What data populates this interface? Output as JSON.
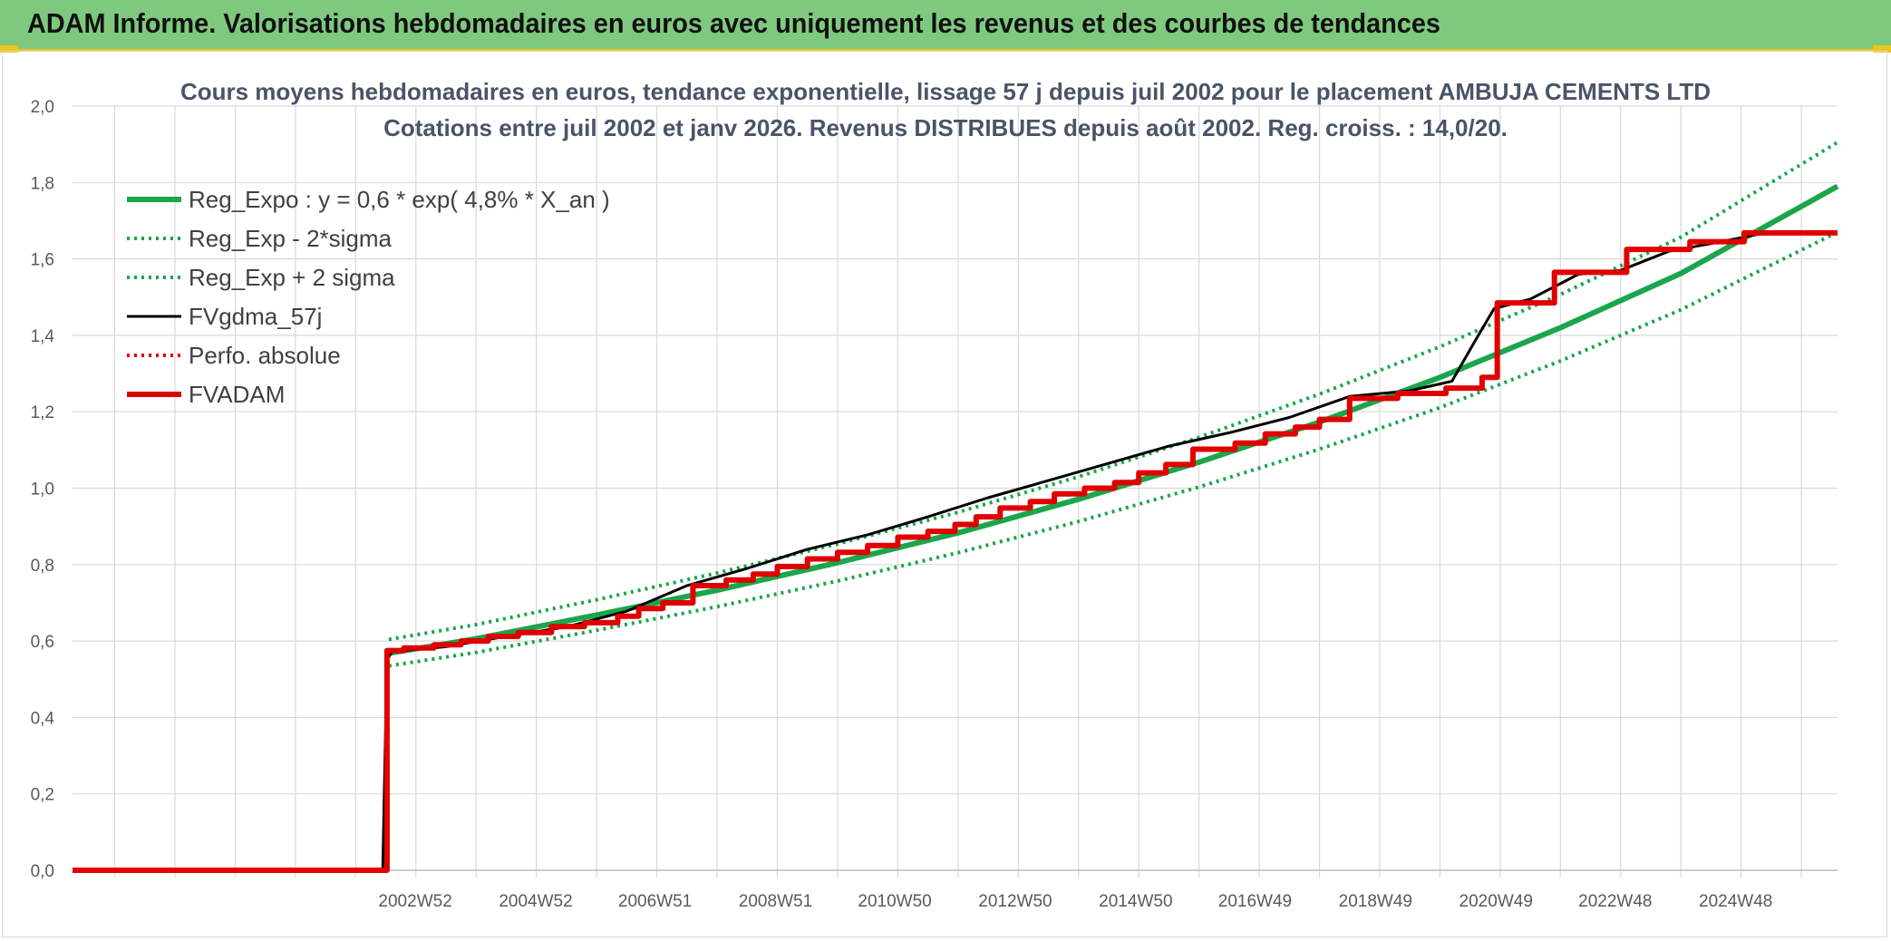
{
  "banner": {
    "title": "ADAM Informe. Valorisations hebdomadaires en euros avec uniquement les revenus et des courbes de tendances"
  },
  "colors": {
    "banner_bg": "#7fc97f",
    "accent_yellow": "#f0c419",
    "trend_green": "#1aa64a",
    "adam_red": "#e00000",
    "fv_black": "#000000"
  },
  "chart_data": {
    "type": "line",
    "title": [
      "Cours moyens hebdomadaires en euros, tendance exponentielle, lissage 57 j depuis juil 2002 pour le placement AMBUJA CEMENTS LTD",
      "Cotations entre juil 2002 et janv 2026. Revenus DISTRIBUES depuis août 2002. Reg. croiss. : 14,0/20."
    ],
    "xlabel": "",
    "ylabel": "",
    "ylim": [
      0,
      2.0
    ],
    "xlim": [
      1997.3,
      2026.6
    ],
    "y_ticks": [
      "0,0",
      "0,2",
      "0,4",
      "0,6",
      "0,8",
      "1,0",
      "1,2",
      "1,4",
      "1,6",
      "1,8",
      "2,0"
    ],
    "x_tick_labels": [
      {
        "label": "2002W52",
        "x": 2002.99
      },
      {
        "label": "2004W52",
        "x": 2004.99
      },
      {
        "label": "2006W51",
        "x": 2006.97
      },
      {
        "label": "2008W51",
        "x": 2008.97
      },
      {
        "label": "2010W50",
        "x": 2010.95
      },
      {
        "label": "2012W50",
        "x": 2012.95
      },
      {
        "label": "2014W50",
        "x": 2014.95
      },
      {
        "label": "2016W49",
        "x": 2016.93
      },
      {
        "label": "2018W49",
        "x": 2018.93
      },
      {
        "label": "2020W49",
        "x": 2020.93
      },
      {
        "label": "2022W48",
        "x": 2022.91
      },
      {
        "label": "2024W48",
        "x": 2024.91
      }
    ],
    "grid": true,
    "legend_position": "top-left",
    "series": [
      {
        "name": "Reg_Expo : y = 0,6 * exp( 4,8% *  X_an )",
        "style": "solid-thick",
        "color": "#1aa64a",
        "points": [
          [
            2002.55,
            0.568
          ],
          [
            2004,
            0.606
          ],
          [
            2006,
            0.668
          ],
          [
            2008,
            0.733
          ],
          [
            2010,
            0.805
          ],
          [
            2012,
            0.883
          ],
          [
            2014,
            0.971
          ],
          [
            2016,
            1.068
          ],
          [
            2018,
            1.173
          ],
          [
            2020,
            1.29
          ],
          [
            2022,
            1.42
          ],
          [
            2024,
            1.562
          ],
          [
            2026.6,
            1.79
          ]
        ]
      },
      {
        "name": "Reg_Exp - 2*sigma",
        "style": "dotted",
        "color": "#1aa64a",
        "points": [
          [
            2002.55,
            0.535
          ],
          [
            2004,
            0.57
          ],
          [
            2006,
            0.628
          ],
          [
            2008,
            0.69
          ],
          [
            2010,
            0.757
          ],
          [
            2012,
            0.831
          ],
          [
            2014,
            0.913
          ],
          [
            2016,
            1.003
          ],
          [
            2018,
            1.102
          ],
          [
            2020,
            1.211
          ],
          [
            2022,
            1.333
          ],
          [
            2024,
            1.467
          ],
          [
            2026.6,
            1.67
          ]
        ]
      },
      {
        "name": "Reg_Exp + 2 sigma",
        "style": "dotted",
        "color": "#1aa64a",
        "points": [
          [
            2002.55,
            0.604
          ],
          [
            2004,
            0.643
          ],
          [
            2006,
            0.708
          ],
          [
            2008,
            0.778
          ],
          [
            2010,
            0.854
          ],
          [
            2012,
            0.937
          ],
          [
            2014,
            1.03
          ],
          [
            2016,
            1.133
          ],
          [
            2018,
            1.246
          ],
          [
            2020,
            1.37
          ],
          [
            2022,
            1.507
          ],
          [
            2024,
            1.657
          ],
          [
            2026.6,
            1.905
          ]
        ]
      },
      {
        "name": "FVgdma_57j",
        "style": "solid",
        "color": "#000000",
        "points": [
          [
            1997.3,
            0.0
          ],
          [
            2002.45,
            0.0
          ],
          [
            2002.52,
            0.55
          ],
          [
            2002.6,
            0.572
          ],
          [
            2003.5,
            0.585
          ],
          [
            2004.5,
            0.612
          ],
          [
            2005.5,
            0.637
          ],
          [
            2006.5,
            0.678
          ],
          [
            2007.5,
            0.745
          ],
          [
            2008.5,
            0.79
          ],
          [
            2009.5,
            0.84
          ],
          [
            2010.5,
            0.878
          ],
          [
            2011.5,
            0.925
          ],
          [
            2012.5,
            0.975
          ],
          [
            2013.5,
            1.02
          ],
          [
            2014.5,
            1.065
          ],
          [
            2015.5,
            1.11
          ],
          [
            2016.5,
            1.145
          ],
          [
            2017.5,
            1.185
          ],
          [
            2018.5,
            1.24
          ],
          [
            2019.5,
            1.255
          ],
          [
            2020.2,
            1.28
          ],
          [
            2020.6,
            1.39
          ],
          [
            2020.9,
            1.47
          ],
          [
            2021.5,
            1.495
          ],
          [
            2022.3,
            1.56
          ],
          [
            2023,
            1.57
          ],
          [
            2023.8,
            1.62
          ],
          [
            2024.5,
            1.64
          ],
          [
            2025.3,
            1.665
          ],
          [
            2026.6,
            1.67
          ]
        ]
      },
      {
        "name": "Perfo. absolue",
        "style": "dotted",
        "color": "#e00000",
        "points": []
      },
      {
        "name": "FVADAM",
        "style": "solid-thick",
        "color": "#e00000",
        "steps": [
          [
            1997.3,
            0.0
          ],
          [
            2002.52,
            0.575
          ],
          [
            2002.8,
            0.582
          ],
          [
            2003.3,
            0.59
          ],
          [
            2003.75,
            0.6
          ],
          [
            2004.2,
            0.612
          ],
          [
            2004.7,
            0.622
          ],
          [
            2005.25,
            0.638
          ],
          [
            2005.8,
            0.648
          ],
          [
            2006.35,
            0.665
          ],
          [
            2006.7,
            0.685
          ],
          [
            2007.1,
            0.7
          ],
          [
            2007.6,
            0.745
          ],
          [
            2008.15,
            0.76
          ],
          [
            2008.6,
            0.775
          ],
          [
            2009.0,
            0.795
          ],
          [
            2009.5,
            0.815
          ],
          [
            2010.0,
            0.832
          ],
          [
            2010.5,
            0.85
          ],
          [
            2011.0,
            0.872
          ],
          [
            2011.5,
            0.887
          ],
          [
            2011.95,
            0.905
          ],
          [
            2012.3,
            0.925
          ],
          [
            2012.7,
            0.948
          ],
          [
            2013.2,
            0.965
          ],
          [
            2013.6,
            0.985
          ],
          [
            2014.1,
            1.0
          ],
          [
            2014.6,
            1.015
          ],
          [
            2015.0,
            1.04
          ],
          [
            2015.45,
            1.062
          ],
          [
            2015.9,
            1.102
          ],
          [
            2016.6,
            1.118
          ],
          [
            2017.1,
            1.142
          ],
          [
            2017.6,
            1.16
          ],
          [
            2018.0,
            1.18
          ],
          [
            2018.5,
            1.235
          ],
          [
            2019.3,
            1.248
          ],
          [
            2020.1,
            1.262
          ],
          [
            2020.7,
            1.29
          ],
          [
            2020.95,
            1.485
          ],
          [
            2021.9,
            1.565
          ],
          [
            2023.1,
            1.625
          ],
          [
            2024.15,
            1.645
          ],
          [
            2025.05,
            1.668
          ],
          [
            2026.6,
            1.668
          ]
        ]
      }
    ]
  }
}
